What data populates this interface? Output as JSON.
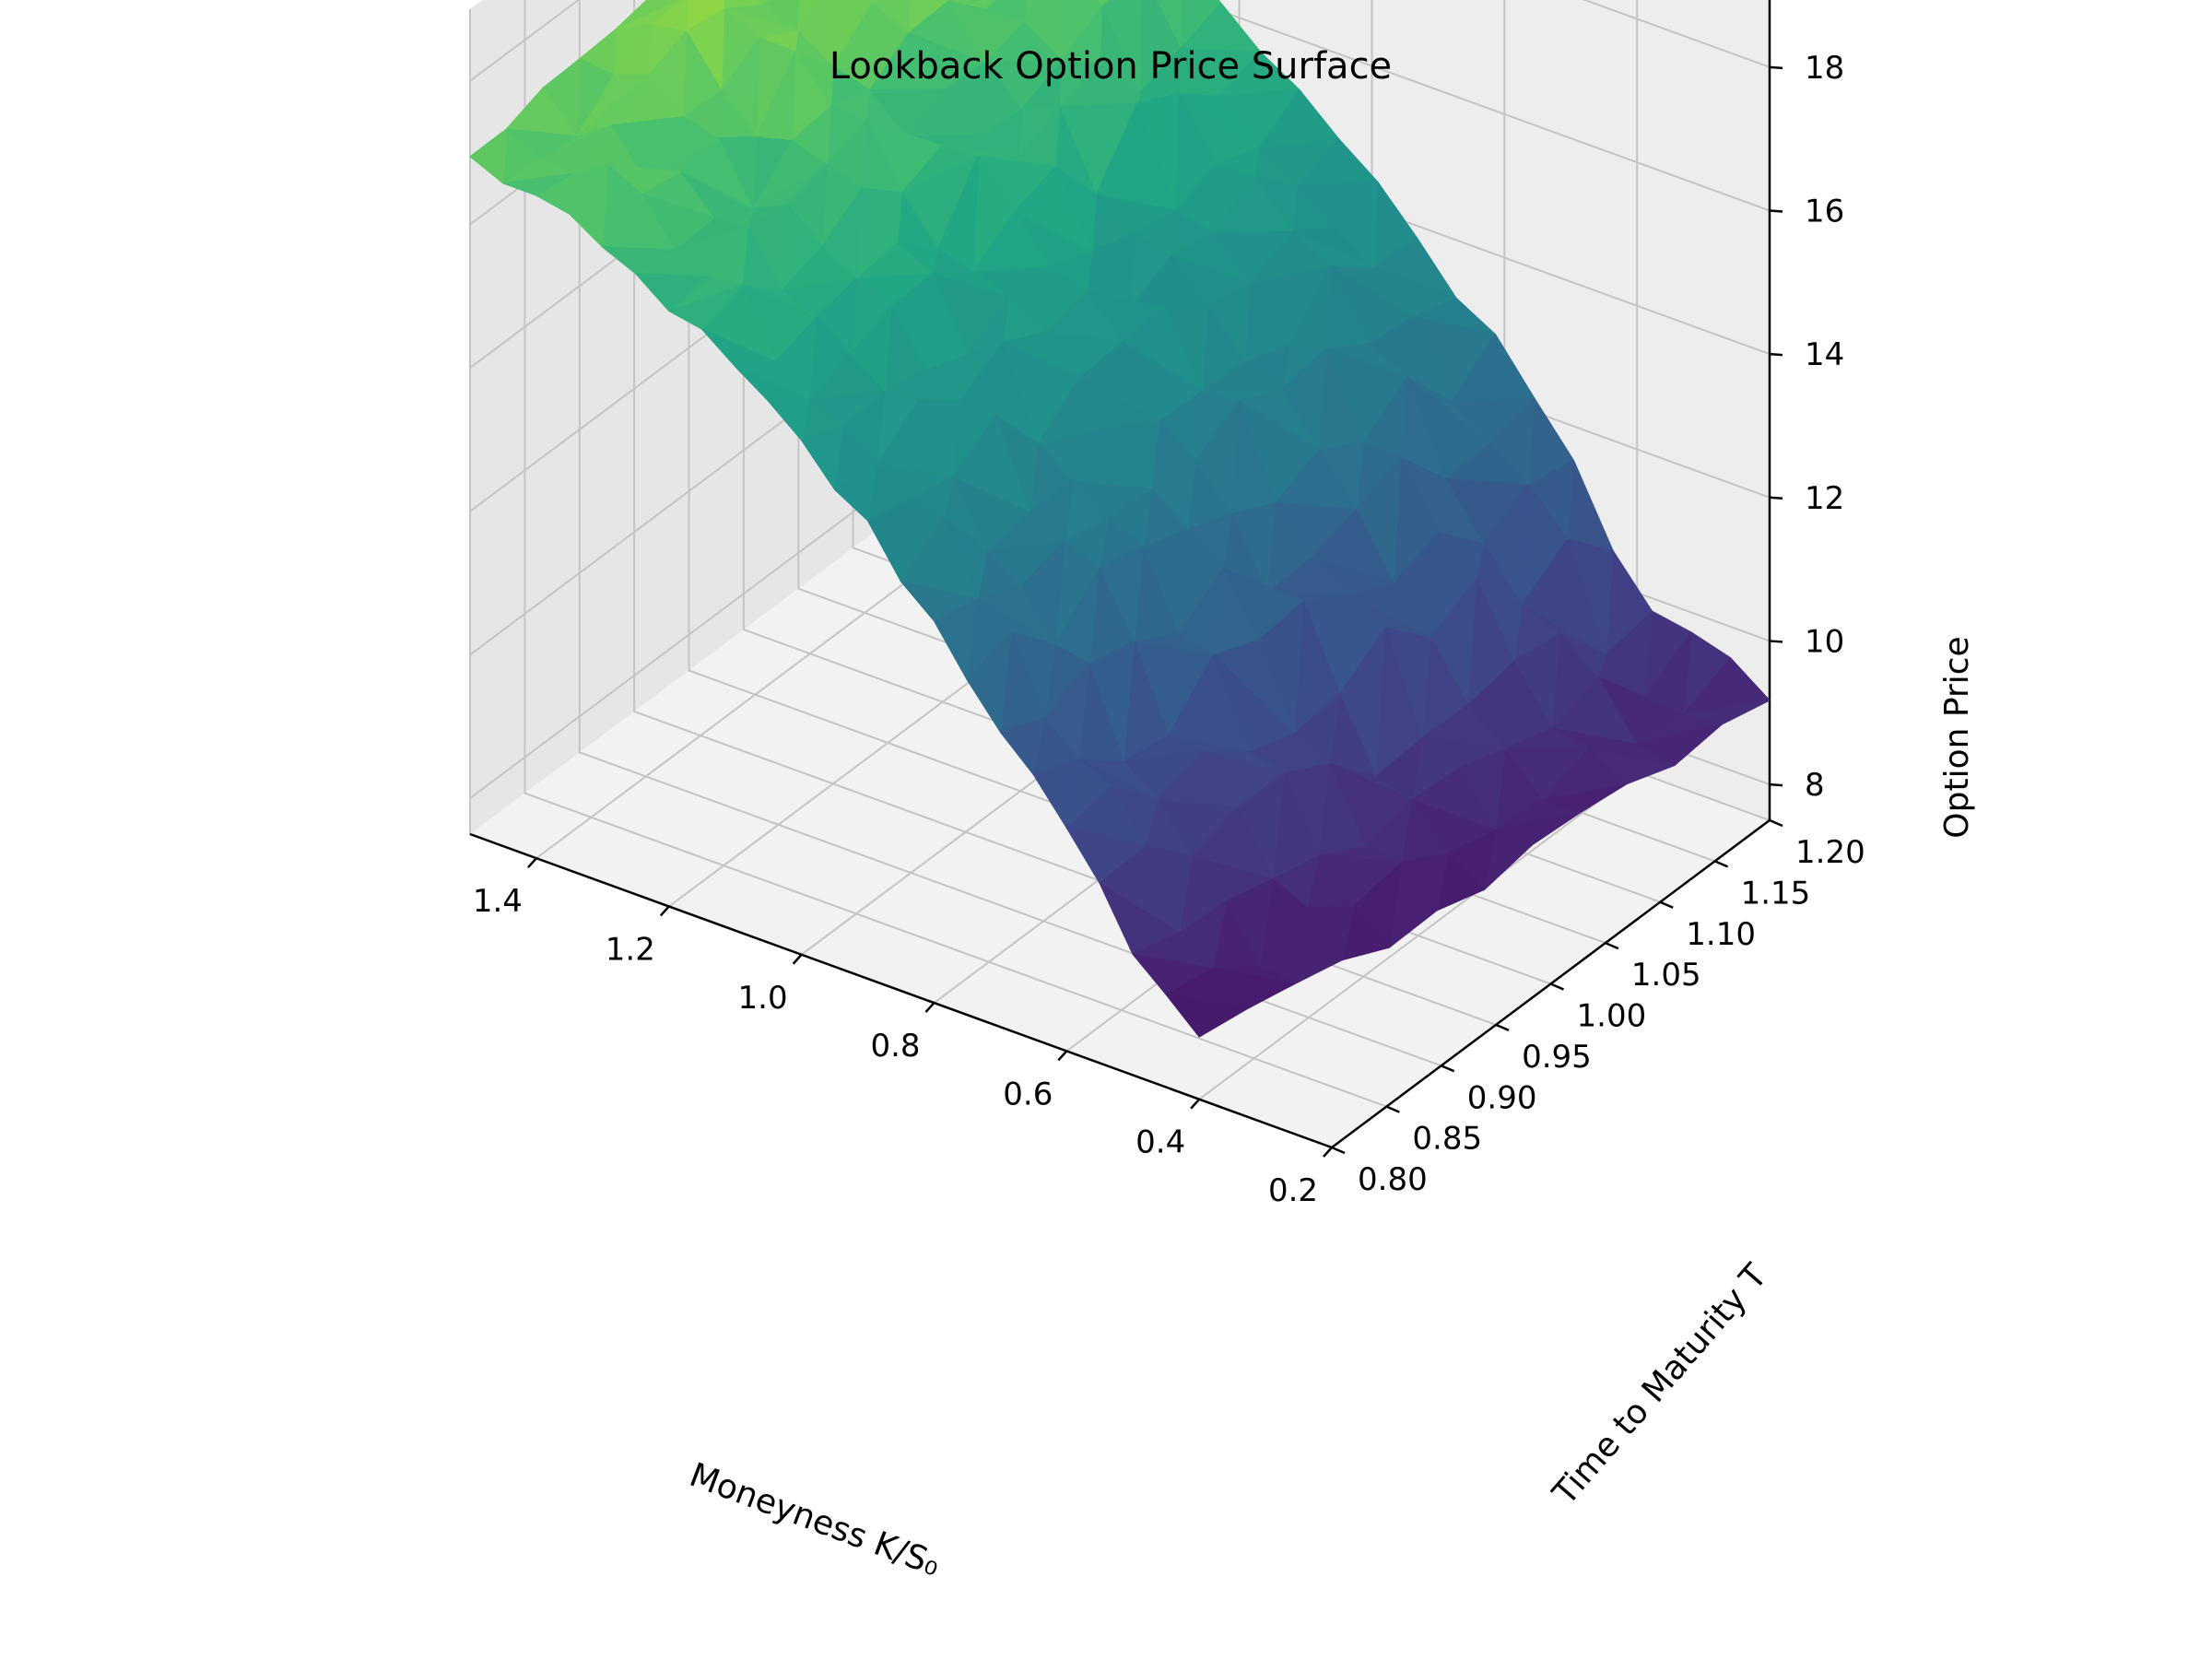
{
  "chart_data": {
    "type": "surface",
    "title": "Lookback Option Price Surface",
    "xlabel": "Moneyness K/S₀",
    "ylabel": "Time to Maturity T",
    "zlabel": "Option Price",
    "xlim": [
      1.5,
      0.2
    ],
    "ylim": [
      0.8,
      1.2
    ],
    "zlim": [
      7.5,
      19
    ],
    "x_ticks": [
      "1.4",
      "1.2",
      "1.0",
      "0.8",
      "0.6",
      "0.4",
      "0.2"
    ],
    "y_ticks": [
      "0.80",
      "0.85",
      "0.90",
      "0.95",
      "1.00",
      "1.05",
      "1.10",
      "1.15",
      "1.20"
    ],
    "z_ticks": [
      "8",
      "10",
      "12",
      "14",
      "16",
      "18"
    ],
    "colormap": "viridis",
    "grid": true,
    "price_by_moneyness": {
      "moneyness": [
        1.5,
        1.4,
        1.3,
        1.2,
        1.1,
        1.0,
        0.9,
        0.8,
        0.7,
        0.6,
        0.5,
        0.4,
        0.3
      ],
      "price_short_maturity": [
        16.9,
        16.7,
        16.3,
        15.9,
        15.3,
        14.6,
        13.8,
        12.8,
        11.7,
        10.5,
        9.3,
        8.3,
        7.6
      ],
      "price_long_maturity": [
        18.0,
        17.9,
        17.6,
        17.2,
        16.6,
        16.0,
        15.2,
        14.4,
        13.6,
        12.6,
        11.5,
        10.0,
        9.6
      ]
    },
    "x_range_at_T": {
      "maturity": [
        0.8,
        1.2
      ],
      "moneyness_min": [
        0.4,
        0.2
      ],
      "moneyness_max": [
        1.5,
        1.5
      ]
    }
  }
}
